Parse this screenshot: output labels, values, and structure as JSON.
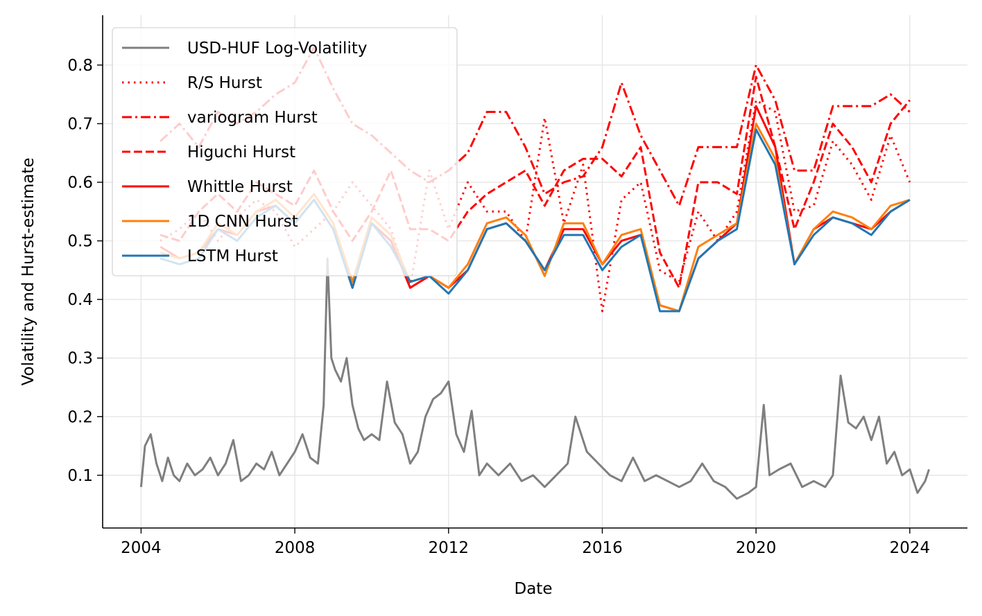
{
  "chart_data": {
    "type": "line",
    "title": "",
    "xlabel": "Date",
    "ylabel": "Volatility and Hurst-estimate",
    "xlim": [
      2003.0,
      2025.5
    ],
    "ylim": [
      0.01,
      0.885
    ],
    "x_ticks": [
      2004,
      2008,
      2012,
      2016,
      2020,
      2024
    ],
    "x_tick_labels": [
      "2004",
      "2008",
      "2012",
      "2016",
      "2020",
      "2024"
    ],
    "y_ticks": [
      0.1,
      0.2,
      0.3,
      0.4,
      0.5,
      0.6,
      0.7,
      0.8
    ],
    "y_tick_labels": [
      "0.1",
      "0.2",
      "0.3",
      "0.4",
      "0.5",
      "0.6",
      "0.7",
      "0.8"
    ],
    "grid": true,
    "legend": {
      "placement": "top-left",
      "entries": [
        "USD-HUF Log-Volatility",
        "R/S Hurst",
        "variogram Hurst",
        "Higuchi Hurst",
        "Whittle Hurst",
        "1D CNN Hurst",
        "LSTM Hurst"
      ]
    },
    "series": [
      {
        "name": "USD-HUF Log-Volatility",
        "color": "#7f7f7f",
        "dash": "solid",
        "x": [
          2004.0,
          2004.1,
          2004.25,
          2004.4,
          2004.55,
          2004.7,
          2004.85,
          2005.0,
          2005.2,
          2005.4,
          2005.6,
          2005.8,
          2006.0,
          2006.2,
          2006.4,
          2006.6,
          2006.8,
          2007.0,
          2007.2,
          2007.4,
          2007.6,
          2007.8,
          2008.0,
          2008.2,
          2008.4,
          2008.6,
          2008.75,
          2008.85,
          2008.95,
          2009.05,
          2009.2,
          2009.35,
          2009.5,
          2009.65,
          2009.8,
          2010.0,
          2010.2,
          2010.4,
          2010.6,
          2010.8,
          2011.0,
          2011.2,
          2011.4,
          2011.6,
          2011.8,
          2012.0,
          2012.2,
          2012.4,
          2012.6,
          2012.8,
          2013.0,
          2013.3,
          2013.6,
          2013.9,
          2014.2,
          2014.5,
          2014.8,
          2015.1,
          2015.3,
          2015.6,
          2015.9,
          2016.2,
          2016.5,
          2016.8,
          2017.1,
          2017.4,
          2017.7,
          2018.0,
          2018.3,
          2018.6,
          2018.9,
          2019.2,
          2019.5,
          2019.8,
          2020.0,
          2020.2,
          2020.35,
          2020.6,
          2020.9,
          2021.2,
          2021.5,
          2021.8,
          2022.0,
          2022.2,
          2022.4,
          2022.6,
          2022.8,
          2023.0,
          2023.2,
          2023.4,
          2023.6,
          2023.8,
          2024.0,
          2024.2,
          2024.4,
          2024.5
        ],
        "y": [
          0.08,
          0.15,
          0.17,
          0.12,
          0.09,
          0.13,
          0.1,
          0.09,
          0.12,
          0.1,
          0.11,
          0.13,
          0.1,
          0.12,
          0.16,
          0.09,
          0.1,
          0.12,
          0.11,
          0.14,
          0.1,
          0.12,
          0.14,
          0.17,
          0.13,
          0.12,
          0.22,
          0.47,
          0.3,
          0.28,
          0.26,
          0.3,
          0.22,
          0.18,
          0.16,
          0.17,
          0.16,
          0.26,
          0.19,
          0.17,
          0.12,
          0.14,
          0.2,
          0.23,
          0.24,
          0.26,
          0.17,
          0.14,
          0.21,
          0.1,
          0.12,
          0.1,
          0.12,
          0.09,
          0.1,
          0.08,
          0.1,
          0.12,
          0.2,
          0.14,
          0.12,
          0.1,
          0.09,
          0.13,
          0.09,
          0.1,
          0.09,
          0.08,
          0.09,
          0.12,
          0.09,
          0.08,
          0.06,
          0.07,
          0.08,
          0.22,
          0.1,
          0.11,
          0.12,
          0.08,
          0.09,
          0.08,
          0.1,
          0.27,
          0.19,
          0.18,
          0.2,
          0.16,
          0.2,
          0.12,
          0.14,
          0.1,
          0.11,
          0.07,
          0.09,
          0.11
        ]
      },
      {
        "name": "R/S Hurst",
        "color": "#ff0000",
        "dash": "dotted",
        "x": [
          2004.5,
          2005.0,
          2005.5,
          2006.0,
          2006.5,
          2007.0,
          2007.5,
          2008.0,
          2008.5,
          2009.0,
          2009.5,
          2010.0,
          2010.5,
          2011.0,
          2011.5,
          2012.0,
          2012.5,
          2013.0,
          2013.5,
          2014.0,
          2014.5,
          2015.0,
          2015.5,
          2016.0,
          2016.5,
          2017.0,
          2017.5,
          2018.0,
          2018.5,
          2019.0,
          2019.5,
          2020.0,
          2020.5,
          2021.0,
          2021.5,
          2022.0,
          2022.5,
          2023.0,
          2023.5,
          2024.0
        ],
        "y": [
          0.5,
          0.52,
          0.55,
          0.5,
          0.54,
          0.57,
          0.55,
          0.49,
          0.52,
          0.55,
          0.6,
          0.56,
          0.52,
          0.42,
          0.62,
          0.52,
          0.6,
          0.55,
          0.55,
          0.5,
          0.71,
          0.53,
          0.63,
          0.38,
          0.57,
          0.6,
          0.45,
          0.43,
          0.55,
          0.5,
          0.55,
          0.74,
          0.72,
          0.55,
          0.56,
          0.67,
          0.63,
          0.57,
          0.68,
          0.6
        ]
      },
      {
        "name": "variogram Hurst",
        "color": "#ff0000",
        "dash": "dashdot",
        "x": [
          2004.5,
          2005.0,
          2005.5,
          2006.0,
          2006.5,
          2007.0,
          2007.5,
          2008.0,
          2008.5,
          2009.0,
          2009.5,
          2010.0,
          2010.5,
          2011.0,
          2011.5,
          2012.0,
          2012.5,
          2013.0,
          2013.5,
          2014.0,
          2014.5,
          2015.0,
          2015.5,
          2016.0,
          2016.5,
          2017.0,
          2017.5,
          2018.0,
          2018.5,
          2019.0,
          2019.5,
          2020.0,
          2020.5,
          2021.0,
          2021.5,
          2022.0,
          2022.5,
          2023.0,
          2023.5,
          2024.0
        ],
        "y": [
          0.67,
          0.7,
          0.66,
          0.72,
          0.7,
          0.72,
          0.75,
          0.77,
          0.83,
          0.76,
          0.7,
          0.68,
          0.65,
          0.62,
          0.6,
          0.62,
          0.65,
          0.72,
          0.72,
          0.66,
          0.58,
          0.6,
          0.61,
          0.66,
          0.77,
          0.68,
          0.62,
          0.56,
          0.66,
          0.66,
          0.66,
          0.8,
          0.74,
          0.62,
          0.62,
          0.73,
          0.73,
          0.73,
          0.75,
          0.72
        ]
      },
      {
        "name": "Higuchi Hurst",
        "color": "#ff0000",
        "dash": "dashed",
        "x": [
          2004.5,
          2005.0,
          2005.5,
          2006.0,
          2006.5,
          2007.0,
          2007.5,
          2008.0,
          2008.5,
          2009.0,
          2009.5,
          2010.0,
          2010.5,
          2011.0,
          2011.5,
          2012.0,
          2012.5,
          2013.0,
          2013.5,
          2014.0,
          2014.5,
          2015.0,
          2015.5,
          2016.0,
          2016.5,
          2017.0,
          2017.5,
          2018.0,
          2018.5,
          2019.0,
          2019.5,
          2020.0,
          2020.5,
          2021.0,
          2021.5,
          2022.0,
          2022.5,
          2023.0,
          2023.5,
          2024.0
        ],
        "y": [
          0.51,
          0.5,
          0.55,
          0.58,
          0.55,
          0.6,
          0.58,
          0.56,
          0.62,
          0.55,
          0.5,
          0.55,
          0.62,
          0.52,
          0.52,
          0.5,
          0.55,
          0.58,
          0.6,
          0.62,
          0.56,
          0.62,
          0.64,
          0.64,
          0.61,
          0.66,
          0.48,
          0.42,
          0.6,
          0.6,
          0.58,
          0.78,
          0.66,
          0.52,
          0.6,
          0.7,
          0.66,
          0.6,
          0.7,
          0.74
        ]
      },
      {
        "name": "Whittle Hurst",
        "color": "#ff0000",
        "dash": "solid",
        "x": [
          2004.5,
          2005.0,
          2005.5,
          2006.0,
          2006.5,
          2007.0,
          2007.5,
          2008.0,
          2008.5,
          2009.0,
          2009.5,
          2010.0,
          2010.5,
          2011.0,
          2011.5,
          2012.0,
          2012.5,
          2013.0,
          2013.5,
          2014.0,
          2014.5,
          2015.0,
          2015.5,
          2016.0,
          2016.5,
          2017.0,
          2017.5,
          2018.0,
          2018.5,
          2019.0,
          2019.5,
          2020.0,
          2020.5,
          2021.0,
          2021.5,
          2022.0,
          2022.5,
          2023.0,
          2023.5,
          2024.0
        ],
        "y": [
          0.49,
          0.47,
          0.48,
          0.52,
          0.51,
          0.55,
          0.56,
          0.53,
          0.57,
          0.52,
          0.42,
          0.53,
          0.5,
          0.42,
          0.44,
          0.42,
          0.45,
          0.52,
          0.53,
          0.5,
          0.45,
          0.52,
          0.52,
          0.46,
          0.5,
          0.51,
          0.39,
          0.38,
          0.47,
          0.5,
          0.53,
          0.73,
          0.66,
          0.46,
          0.52,
          0.54,
          0.53,
          0.52,
          0.55,
          0.57
        ]
      },
      {
        "name": "1D CNN Hurst",
        "color": "#ff7f0e",
        "dash": "solid",
        "x": [
          2004.5,
          2005.0,
          2005.5,
          2006.0,
          2006.5,
          2007.0,
          2007.5,
          2008.0,
          2008.5,
          2009.0,
          2009.5,
          2010.0,
          2010.5,
          2011.0,
          2011.5,
          2012.0,
          2012.5,
          2013.0,
          2013.5,
          2014.0,
          2014.5,
          2015.0,
          2015.5,
          2016.0,
          2016.5,
          2017.0,
          2017.5,
          2018.0,
          2018.5,
          2019.0,
          2019.5,
          2020.0,
          2020.5,
          2021.0,
          2021.5,
          2022.0,
          2022.5,
          2023.0,
          2023.5,
          2024.0
        ],
        "y": [
          0.48,
          0.47,
          0.48,
          0.53,
          0.51,
          0.55,
          0.57,
          0.54,
          0.58,
          0.53,
          0.43,
          0.54,
          0.51,
          0.43,
          0.44,
          0.42,
          0.46,
          0.53,
          0.54,
          0.51,
          0.44,
          0.53,
          0.53,
          0.46,
          0.51,
          0.52,
          0.39,
          0.38,
          0.49,
          0.51,
          0.53,
          0.7,
          0.64,
          0.46,
          0.52,
          0.55,
          0.54,
          0.52,
          0.56,
          0.57
        ]
      },
      {
        "name": "LSTM Hurst",
        "color": "#1f77b4",
        "dash": "solid",
        "x": [
          2004.5,
          2005.0,
          2005.5,
          2006.0,
          2006.5,
          2007.0,
          2007.5,
          2008.0,
          2008.5,
          2009.0,
          2009.5,
          2010.0,
          2010.5,
          2011.0,
          2011.5,
          2012.0,
          2012.5,
          2013.0,
          2013.5,
          2014.0,
          2014.5,
          2015.0,
          2015.5,
          2016.0,
          2016.5,
          2017.0,
          2017.5,
          2018.0,
          2018.5,
          2019.0,
          2019.5,
          2020.0,
          2020.5,
          2021.0,
          2021.5,
          2022.0,
          2022.5,
          2023.0,
          2023.5,
          2024.0
        ],
        "y": [
          0.47,
          0.46,
          0.47,
          0.52,
          0.5,
          0.54,
          0.56,
          0.53,
          0.57,
          0.52,
          0.42,
          0.53,
          0.49,
          0.43,
          0.44,
          0.41,
          0.45,
          0.52,
          0.53,
          0.5,
          0.45,
          0.51,
          0.51,
          0.45,
          0.49,
          0.51,
          0.38,
          0.38,
          0.47,
          0.5,
          0.52,
          0.69,
          0.63,
          0.46,
          0.51,
          0.54,
          0.53,
          0.51,
          0.55,
          0.57
        ]
      }
    ]
  }
}
